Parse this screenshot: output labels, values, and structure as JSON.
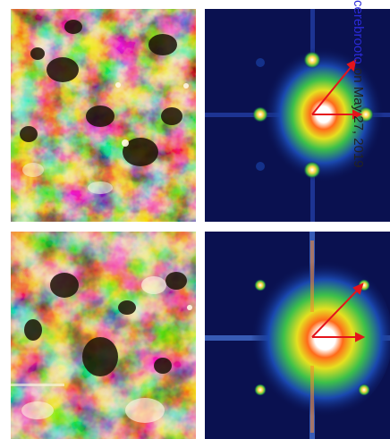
{
  "watermark": {
    "link_text": "cerebrooto",
    "rest_text": "on May 27, 2019"
  },
  "colors": {
    "tan": "#c9a869",
    "dark_brown": "#1c1206",
    "fft_background": "#0a1150",
    "arrow": "#e4141b",
    "watermark_link": "#2a2ad8"
  },
  "panels": [
    {
      "name": "topography-top",
      "type": "real-space-image",
      "colormap": "copper-gold"
    },
    {
      "name": "fft-top",
      "type": "fourier-transform",
      "colormap": "jet-on-dark-blue",
      "arrows": 2
    },
    {
      "name": "topography-bottom",
      "type": "real-space-image",
      "colormap": "copper-gold"
    },
    {
      "name": "fft-bottom",
      "type": "fourier-transform",
      "colormap": "jet-on-dark-blue",
      "arrows": 2
    }
  ]
}
